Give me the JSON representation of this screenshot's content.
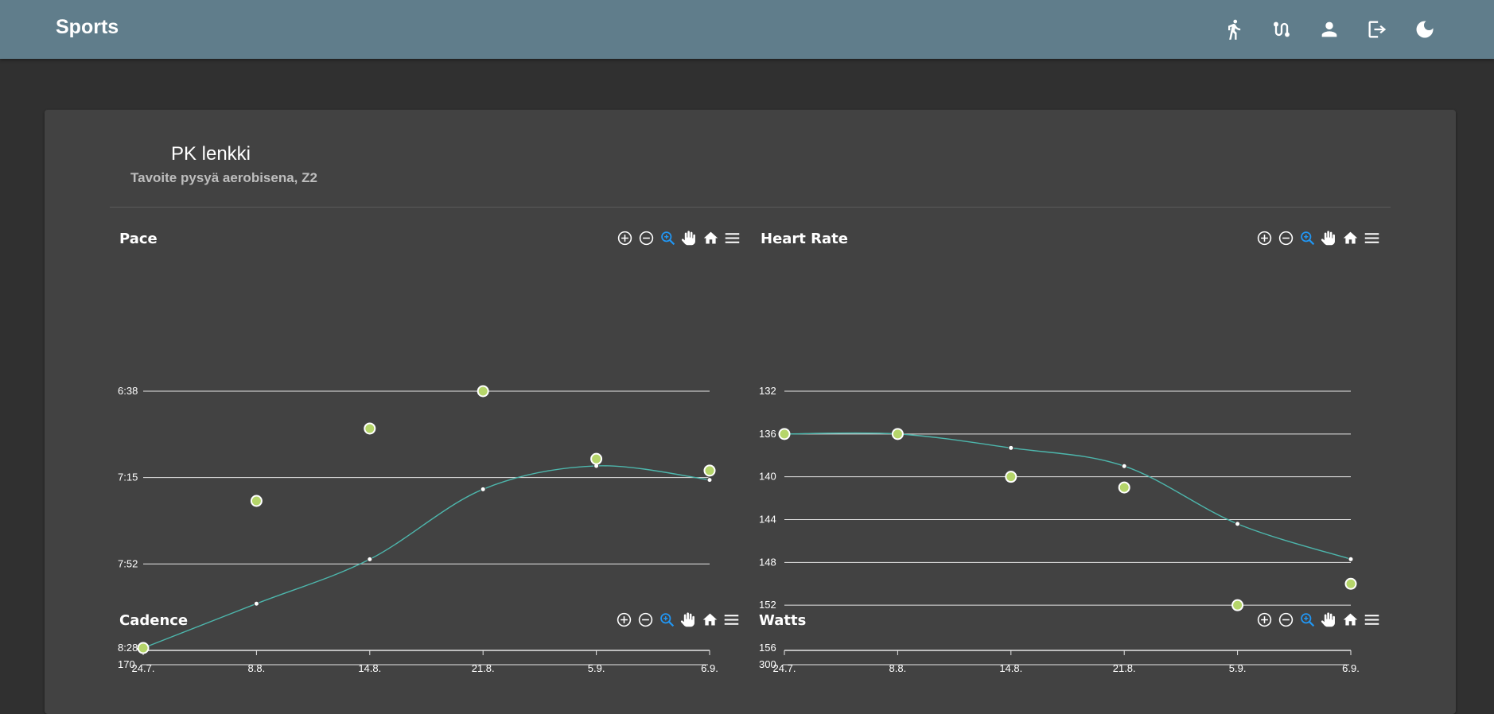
{
  "app": {
    "title": "Sports",
    "nav": [
      {
        "icon": "running-icon",
        "label": ""
      },
      {
        "icon": "route-icon",
        "label": ""
      },
      {
        "icon": "account-icon",
        "label": ""
      },
      {
        "icon": "logout-icon",
        "label": ""
      },
      {
        "icon": "dark-mode-icon",
        "label": ""
      }
    ]
  },
  "workout": {
    "title": "PK lenkki",
    "subtitle": "Tavoite pysyä aerobisena, Z2"
  },
  "toolbar_icons": [
    "zoom-in-icon",
    "zoom-out-icon",
    "selection-zoom-icon",
    "pan-icon",
    "reset-home-icon",
    "menu-icon"
  ],
  "colors": {
    "appbar": "#607d8b",
    "background": "#303030",
    "card": "#424242",
    "trend_line": "#4db6ac",
    "points": "#b5d56a",
    "active_tool": "#2196f3"
  },
  "charts": {
    "pace": {
      "title": "Pace"
    },
    "heart_rate": {
      "title": "Heart Rate"
    },
    "cadence": {
      "title": "Cadence"
    },
    "watts": {
      "title": "Watts"
    }
  },
  "chart_data": [
    {
      "type": "scatter",
      "title": "Pace",
      "categories": [
        "24.7.",
        "8.8.",
        "14.8.",
        "21.8.",
        "5.9.",
        "6.9."
      ],
      "y_ticks": [
        "6:38",
        "7:15",
        "7:52",
        "8:28"
      ],
      "y_tick_seconds": [
        398,
        435,
        472,
        508
      ],
      "y_reversed": true,
      "ylim": [
        "6:38",
        "8:28"
      ],
      "series": [
        {
          "kind": "points",
          "values_seconds": [
            508,
            445,
            414,
            398,
            427,
            432
          ]
        },
        {
          "kind": "trend",
          "values_seconds": [
            508,
            489,
            470,
            440,
            430,
            436
          ]
        }
      ],
      "grid": true
    },
    {
      "type": "scatter",
      "title": "Heart Rate",
      "categories": [
        "24.7.",
        "8.8.",
        "14.8.",
        "21.8.",
        "5.9.",
        "6.9."
      ],
      "y_ticks": [
        "132",
        "136",
        "140",
        "144",
        "148",
        "152",
        "156"
      ],
      "y_reversed": true,
      "ylim": [
        132,
        156
      ],
      "series": [
        {
          "kind": "points",
          "values": [
            136,
            136,
            140,
            141,
            152,
            150
          ]
        },
        {
          "kind": "trend",
          "values": [
            136,
            136,
            137.3,
            139,
            144.4,
            147.7
          ]
        }
      ],
      "grid": true
    },
    {
      "type": "scatter",
      "title": "Cadence",
      "y_ticks": [
        "170"
      ]
    },
    {
      "type": "scatter",
      "title": "Watts",
      "y_ticks": [
        "300"
      ]
    }
  ]
}
